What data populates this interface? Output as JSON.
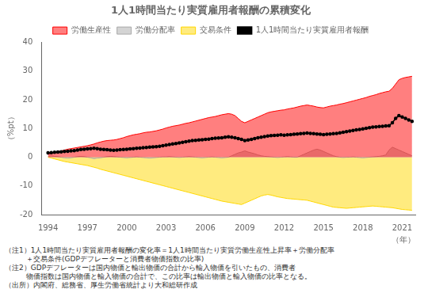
{
  "chart_data": {
    "type": "line",
    "title": "1人1時間当たり実質雇用者報酬の累積変化",
    "ylabel": "（%pt）",
    "xlabel": "（年）",
    "annotations": [
      "（注1）1人1時間当たり実質雇用者報酬の変化率＝1人1時間当たり実質労働生産性上昇率＋労働分配率",
      "　　　＋交易条件(GDPデフレーターと消費者物価指数の比率)",
      "（注2）GDPデフレーターは国内物価と輸出物価の合計から輸入物価を引いたもの、消費者",
      "　　　物価指数は国内物価と輸入物価の合計で、この比率は輸出物価と輸入物価の比率となる。",
      "（出所）内閣府、総務省、厚生労働省統計より大和総研作成"
    ],
    "xlim": [
      1993.5,
      2022
    ],
    "xticks": [
      1994,
      1997,
      2000,
      2003,
      2006,
      2009,
      2012,
      2015,
      2018,
      2021
    ],
    "ylim": [
      -20,
      40
    ],
    "yticks": [
      -20,
      -10,
      0,
      10,
      20,
      30,
      40
    ],
    "grid": false,
    "legend": "top",
    "x": [
      1994,
      1994.25,
      1994.5,
      1994.75,
      1995,
      1995.25,
      1995.5,
      1995.75,
      1996,
      1996.25,
      1996.5,
      1996.75,
      1997,
      1997.25,
      1997.5,
      1997.75,
      1998,
      1998.25,
      1998.5,
      1998.75,
      1999,
      1999.25,
      1999.5,
      1999.75,
      2000,
      2000.25,
      2000.5,
      2000.75,
      2001,
      2001.25,
      2001.5,
      2001.75,
      2002,
      2002.25,
      2002.5,
      2002.75,
      2003,
      2003.25,
      2003.5,
      2003.75,
      2004,
      2004.25,
      2004.5,
      2004.75,
      2005,
      2005.25,
      2005.5,
      2005.75,
      2006,
      2006.25,
      2006.5,
      2006.75,
      2007,
      2007.25,
      2007.5,
      2007.75,
      2008,
      2008.25,
      2008.5,
      2008.75,
      2009,
      2009.25,
      2009.5,
      2009.75,
      2010,
      2010.25,
      2010.5,
      2010.75,
      2011,
      2011.25,
      2011.5,
      2011.75,
      2012,
      2012.25,
      2012.5,
      2012.75,
      2013,
      2013.25,
      2013.5,
      2013.75,
      2014,
      2014.25,
      2014.5,
      2014.75,
      2015,
      2015.25,
      2015.5,
      2015.75,
      2016,
      2016.25,
      2016.5,
      2016.75,
      2017,
      2017.25,
      2017.5,
      2017.75,
      2018,
      2018.25,
      2018.5,
      2018.75,
      2019,
      2019.25,
      2019.5,
      2019.75,
      2020,
      2020.25,
      2020.5,
      2020.75,
      2021,
      2021.25,
      2021.5,
      2021.75
    ],
    "series": [
      {
        "name": "労働生産性",
        "type": "area",
        "color": "#ff0000",
        "values": [
          1.0,
          1.3,
          1.6,
          1.9,
          2.2,
          2.5,
          2.8,
          3.0,
          3.2,
          3.4,
          3.6,
          3.8,
          4.0,
          4.3,
          4.6,
          5.0,
          5.3,
          5.6,
          5.8,
          5.9,
          6.0,
          6.2,
          6.5,
          6.8,
          7.2,
          7.5,
          7.8,
          8.0,
          8.2,
          8.5,
          8.7,
          8.8,
          9.0,
          9.2,
          9.5,
          9.8,
          10.2,
          10.5,
          10.8,
          11.0,
          11.2,
          11.5,
          11.8,
          12.0,
          12.3,
          12.6,
          12.9,
          13.2,
          13.5,
          13.8,
          14.0,
          14.2,
          14.5,
          14.8,
          15.0,
          15.2,
          15.0,
          14.5,
          13.5,
          12.5,
          12.0,
          12.5,
          13.0,
          13.5,
          14.0,
          14.5,
          15.0,
          15.5,
          15.8,
          16.0,
          16.2,
          16.4,
          16.5,
          16.8,
          17.0,
          17.2,
          17.5,
          17.8,
          18.0,
          18.2,
          18.0,
          17.8,
          17.5,
          17.3,
          17.2,
          17.5,
          17.8,
          18.0,
          18.2,
          18.5,
          18.7,
          19.0,
          19.3,
          19.6,
          19.9,
          20.2,
          20.5,
          20.8,
          21.2,
          21.5,
          21.8,
          22.2,
          22.5,
          22.8,
          23.0,
          24.0,
          25.5,
          27.0,
          27.5,
          27.8,
          28.0,
          28.2
        ]
      },
      {
        "name": "労働分配率",
        "type": "area",
        "color": "#aaaaaa",
        "values": [
          0.3,
          0.5,
          0.3,
          0.2,
          0.0,
          -0.2,
          -0.3,
          -0.2,
          0.0,
          0.2,
          0.3,
          0.2,
          0.0,
          -0.2,
          -0.5,
          -0.3,
          -0.2,
          0.0,
          0.2,
          0.3,
          0.2,
          0.1,
          0.0,
          -0.1,
          -0.2,
          -0.1,
          0.0,
          0.1,
          0.0,
          -0.1,
          -0.2,
          -0.3,
          -0.2,
          -0.1,
          0.0,
          0.1,
          0.1,
          0.2,
          0.1,
          0.0,
          -0.1,
          0.0,
          0.1,
          0.2,
          0.1,
          0.0,
          -0.1,
          -0.2,
          -0.1,
          0.0,
          0.1,
          0.0,
          -0.1,
          -0.2,
          -0.1,
          0.0,
          0.5,
          1.0,
          1.5,
          1.8,
          2.2,
          1.8,
          1.5,
          1.2,
          0.8,
          0.5,
          0.3,
          0.2,
          0.1,
          0.0,
          -0.1,
          0.0,
          0.1,
          0.2,
          0.1,
          0.0,
          0.0,
          0.5,
          1.0,
          1.5,
          2.0,
          2.5,
          2.8,
          2.5,
          2.0,
          1.5,
          1.0,
          0.5,
          0.2,
          0.0,
          -0.1,
          0.0,
          0.0,
          0.1,
          0.0,
          -0.1,
          -0.2,
          -0.1,
          0.0,
          0.1,
          0.2,
          0.3,
          0.5,
          0.8,
          2.5,
          3.5,
          3.0,
          2.5,
          2.0,
          1.5,
          1.0,
          0.5
        ]
      },
      {
        "name": "交易条件",
        "type": "area",
        "color": "#FFD700",
        "values": [
          0.0,
          -0.3,
          -0.6,
          -0.9,
          -1.2,
          -1.5,
          -1.7,
          -1.9,
          -2.1,
          -2.3,
          -2.5,
          -2.7,
          -2.9,
          -3.2,
          -3.5,
          -3.8,
          -4.2,
          -4.5,
          -4.8,
          -5.1,
          -5.4,
          -5.7,
          -6.0,
          -6.3,
          -6.6,
          -6.9,
          -7.2,
          -7.5,
          -7.8,
          -8.1,
          -8.4,
          -8.7,
          -9.0,
          -9.3,
          -9.6,
          -9.9,
          -10.2,
          -10.5,
          -10.8,
          -11.1,
          -11.4,
          -11.7,
          -12.0,
          -12.3,
          -12.6,
          -12.9,
          -13.2,
          -13.5,
          -13.8,
          -14.1,
          -14.4,
          -14.7,
          -15.0,
          -15.3,
          -15.5,
          -15.7,
          -15.9,
          -16.1,
          -16.3,
          -16.5,
          -16.0,
          -15.5,
          -15.0,
          -14.5,
          -14.0,
          -13.5,
          -13.2,
          -13.0,
          -13.2,
          -13.5,
          -13.8,
          -14.0,
          -14.2,
          -14.4,
          -14.5,
          -14.6,
          -14.7,
          -14.8,
          -14.9,
          -15.0,
          -15.3,
          -15.6,
          -15.9,
          -16.2,
          -16.5,
          -16.8,
          -17.1,
          -17.4,
          -17.5,
          -17.6,
          -17.7,
          -17.8,
          -17.7,
          -17.6,
          -17.5,
          -17.4,
          -17.3,
          -17.2,
          -17.1,
          -17.0,
          -17.1,
          -17.2,
          -17.3,
          -17.4,
          -17.5,
          -17.6,
          -17.8,
          -18.0,
          -18.2,
          -18.3,
          -18.4,
          -18.5
        ]
      },
      {
        "name": "1人1時間当たり実質雇用者報酬",
        "type": "line",
        "color": "#000000",
        "marker": "circle",
        "values": [
          1.5,
          1.6,
          1.7,
          1.8,
          1.9,
          2.0,
          2.1,
          2.2,
          2.3,
          2.5,
          2.7,
          2.8,
          2.9,
          3.0,
          3.1,
          3.0,
          2.8,
          2.7,
          2.6,
          2.5,
          2.4,
          2.5,
          2.6,
          2.7,
          2.8,
          2.9,
          3.0,
          3.1,
          3.2,
          3.3,
          3.4,
          3.5,
          3.6,
          3.7,
          3.8,
          4.0,
          4.2,
          4.4,
          4.6,
          4.8,
          5.0,
          5.2,
          5.4,
          5.6,
          5.8,
          5.9,
          6.0,
          6.1,
          6.2,
          6.3,
          6.5,
          6.6,
          6.7,
          6.8,
          7.0,
          7.1,
          7.0,
          6.8,
          6.5,
          6.2,
          5.8,
          6.0,
          6.2,
          6.5,
          6.8,
          7.0,
          7.2,
          7.4,
          7.5,
          7.6,
          7.7,
          7.8,
          7.7,
          7.8,
          7.9,
          8.0,
          8.1,
          8.2,
          8.3,
          8.4,
          8.3,
          8.2,
          8.1,
          8.0,
          7.9,
          8.0,
          8.1,
          8.2,
          8.3,
          8.5,
          8.7,
          8.9,
          9.1,
          9.3,
          9.5,
          9.7,
          9.9,
          10.1,
          10.3,
          10.5,
          10.6,
          10.7,
          10.8,
          10.9,
          11.0,
          12.0,
          13.5,
          14.5,
          14.0,
          13.5,
          13.0,
          12.5
        ]
      }
    ]
  }
}
